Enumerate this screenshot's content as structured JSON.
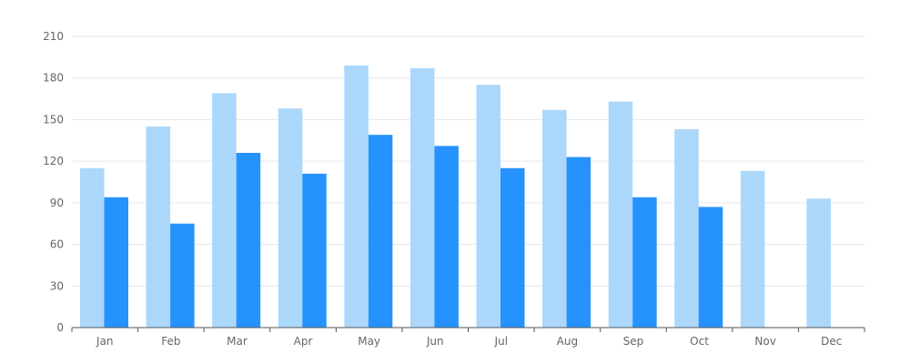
{
  "chart_data": {
    "type": "bar",
    "categories": [
      "Jan",
      "Feb",
      "Mar",
      "Apr",
      "May",
      "Jun",
      "Jul",
      "Aug",
      "Sep",
      "Oct",
      "Nov",
      "Dec"
    ],
    "series": [
      {
        "color": "#abd7fb",
        "values": [
          115,
          145,
          169,
          158,
          189,
          187,
          175,
          157,
          163,
          143,
          113,
          93
        ]
      },
      {
        "color": "#2692fe",
        "values": [
          94,
          75,
          126,
          111,
          139,
          131,
          115,
          123,
          94,
          87,
          null,
          null
        ]
      }
    ],
    "title": "",
    "xlabel": "",
    "ylabel": "",
    "ylim": [
      0,
      210
    ],
    "yticks": [
      0,
      30,
      60,
      90,
      120,
      150,
      180,
      210
    ],
    "grid": true,
    "legend": "none"
  }
}
